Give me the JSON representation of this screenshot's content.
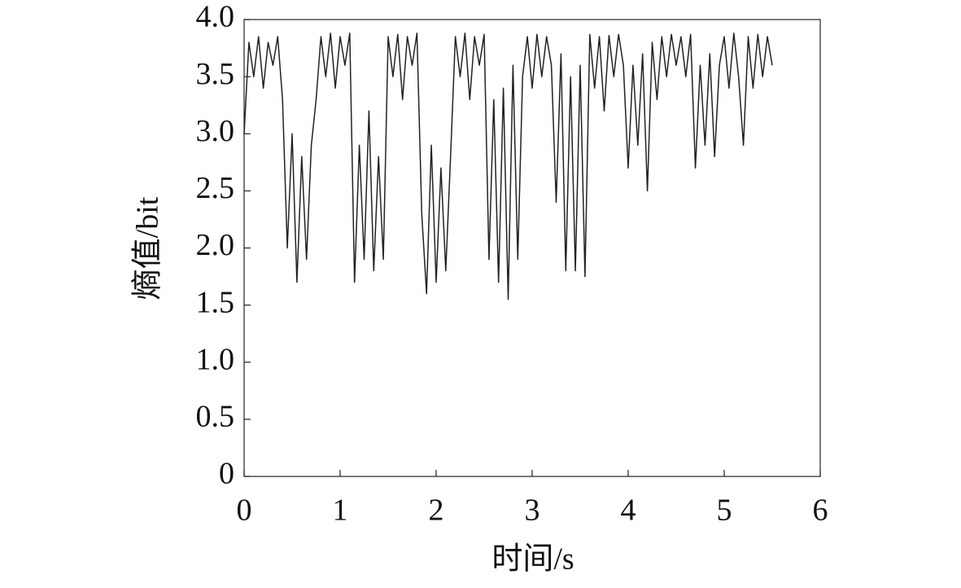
{
  "chart_data": {
    "type": "line",
    "x_label": "时间/s",
    "y_label": "熵值/bit",
    "xlim": [
      0,
      6
    ],
    "xticks": [
      0,
      1,
      2,
      3,
      4,
      5,
      6
    ],
    "ylim": [
      0,
      4
    ],
    "yticks": [
      0,
      0.5,
      {
        "value": 1,
        "label": "1.0"
      },
      1.5,
      {
        "value": 2,
        "label": "2.0"
      },
      2.5,
      {
        "value": 3,
        "label": "3.0"
      },
      3.5,
      {
        "value": 4,
        "label": "4.0"
      }
    ],
    "x": [
      0,
      0.05,
      0.1,
      0.15,
      0.2,
      0.25,
      0.3,
      0.35,
      0.4,
      0.45,
      0.5,
      0.55,
      0.6,
      0.65,
      0.7,
      0.75,
      0.8,
      0.85,
      0.9,
      0.95,
      1,
      1.05,
      1.1,
      1.15,
      1.2,
      1.25,
      1.3,
      1.35,
      1.4,
      1.45,
      1.5,
      1.55,
      1.6,
      1.65,
      1.7,
      1.75,
      1.8,
      1.85,
      1.9,
      1.95,
      2,
      2.05,
      2.1,
      2.15,
      2.2,
      2.25,
      2.3,
      2.35,
      2.4,
      2.45,
      2.5,
      2.55,
      2.6,
      2.65,
      2.7,
      2.75,
      2.8,
      2.85,
      2.9,
      2.95,
      3,
      3.05,
      3.1,
      3.15,
      3.2,
      3.25,
      3.3,
      3.35,
      3.4,
      3.45,
      3.5,
      3.55,
      3.6,
      3.65,
      3.7,
      3.75,
      3.8,
      3.85,
      3.9,
      3.95,
      4,
      4.05,
      4.1,
      4.15,
      4.2,
      4.25,
      4.3,
      4.35,
      4.4,
      4.45,
      4.5,
      4.55,
      4.6,
      4.65,
      4.7,
      4.75,
      4.8,
      4.85,
      4.9,
      4.95,
      5,
      5.05,
      5.1,
      5.15,
      5.2,
      5.25,
      5.3,
      5.35,
      5.4,
      5.45,
      5.5
    ],
    "series": [
      {
        "color": "#222222",
        "values": [
          3.0,
          3.8,
          3.5,
          3.85,
          3.4,
          3.8,
          3.6,
          3.85,
          3.3,
          2.0,
          3.0,
          1.7,
          2.8,
          1.9,
          2.9,
          3.3,
          3.85,
          3.5,
          3.88,
          3.4,
          3.85,
          3.6,
          3.88,
          1.7,
          2.9,
          1.9,
          3.2,
          1.8,
          2.8,
          1.9,
          3.85,
          3.5,
          3.87,
          3.3,
          3.85,
          3.6,
          3.88,
          2.3,
          1.6,
          2.9,
          1.7,
          2.7,
          1.8,
          2.8,
          3.85,
          3.5,
          3.88,
          3.3,
          3.85,
          3.6,
          3.87,
          1.9,
          3.3,
          1.7,
          3.4,
          1.55,
          3.6,
          1.9,
          3.5,
          3.85,
          3.4,
          3.87,
          3.5,
          3.85,
          3.6,
          2.4,
          3.7,
          1.8,
          3.5,
          1.8,
          3.6,
          1.75,
          3.87,
          3.4,
          3.85,
          3.2,
          3.86,
          3.5,
          3.87,
          3.6,
          2.7,
          3.6,
          2.9,
          3.7,
          2.5,
          3.8,
          3.3,
          3.85,
          3.5,
          3.87,
          3.6,
          3.85,
          3.5,
          3.87,
          2.7,
          3.6,
          2.9,
          3.7,
          2.8,
          3.6,
          3.85,
          3.4,
          3.88,
          3.5,
          2.9,
          3.85,
          3.4,
          3.87,
          3.5,
          3.85,
          3.6
        ]
      }
    ]
  }
}
